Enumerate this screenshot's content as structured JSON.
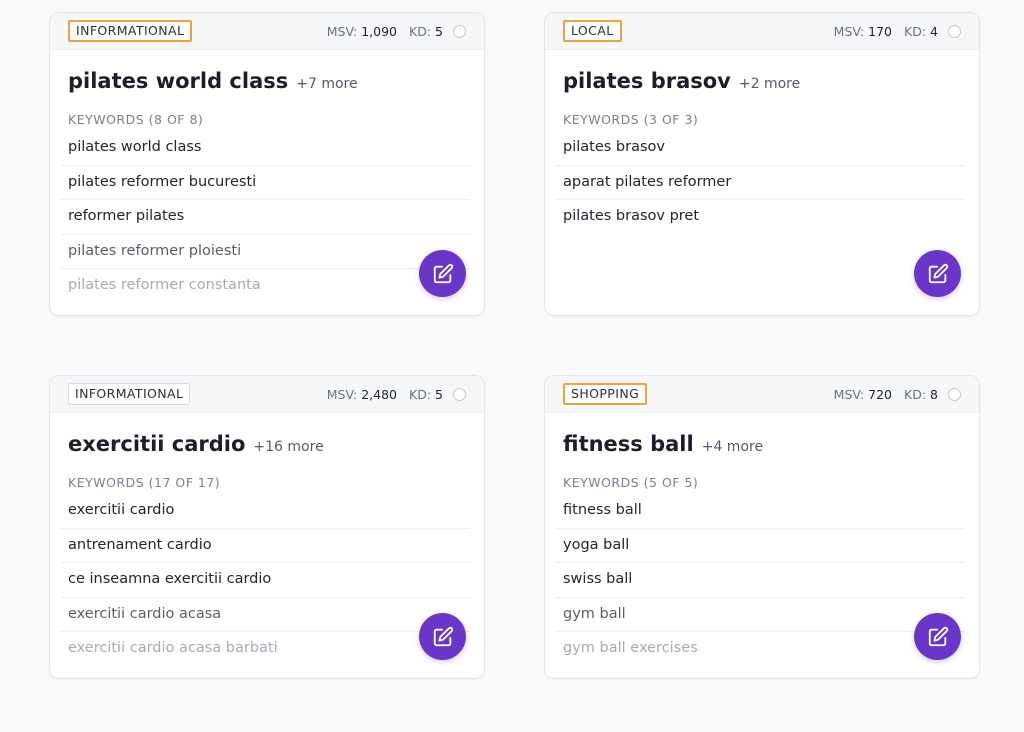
{
  "labels": {
    "msv": "MSV:",
    "kd": "KD:"
  },
  "colors": {
    "accent": "#6a35c9",
    "highlight": "#f2a03d"
  },
  "icons": {
    "edit": "edit-icon",
    "select": "circle-select"
  },
  "cards": [
    {
      "intent": "INFORMATIONAL",
      "msv": "1,090",
      "kd": "5",
      "title": "pilates world class",
      "more": "+7 more",
      "keywords_heading": "KEYWORDS (8 OF 8)",
      "keywords": [
        "pilates world class",
        "pilates reformer bucuresti",
        "reformer pilates",
        "pilates reformer ploiesti",
        "pilates reformer constanta"
      ]
    },
    {
      "intent": "LOCAL",
      "msv": "170",
      "kd": "4",
      "title": "pilates brasov",
      "more": "+2 more",
      "keywords_heading": "KEYWORDS (3 OF 3)",
      "keywords": [
        "pilates brasov",
        "aparat pilates reformer",
        "pilates brasov pret"
      ]
    },
    {
      "intent": "INFORMATIONAL",
      "msv": "2,480",
      "kd": "5",
      "title": "exercitii cardio",
      "more": "+16 more",
      "keywords_heading": "KEYWORDS (17 OF 17)",
      "keywords": [
        "exercitii cardio",
        "antrenament cardio",
        "ce inseamna exercitii cardio",
        "exercitii cardio acasa",
        "exercitii cardio acasa barbati"
      ]
    },
    {
      "intent": "SHOPPING",
      "msv": "720",
      "kd": "8",
      "title": "fitness ball",
      "more": "+4 more",
      "keywords_heading": "KEYWORDS (5 OF 5)",
      "keywords": [
        "fitness ball",
        "yoga ball",
        "swiss ball",
        "gym ball",
        "gym ball exercises"
      ]
    }
  ]
}
